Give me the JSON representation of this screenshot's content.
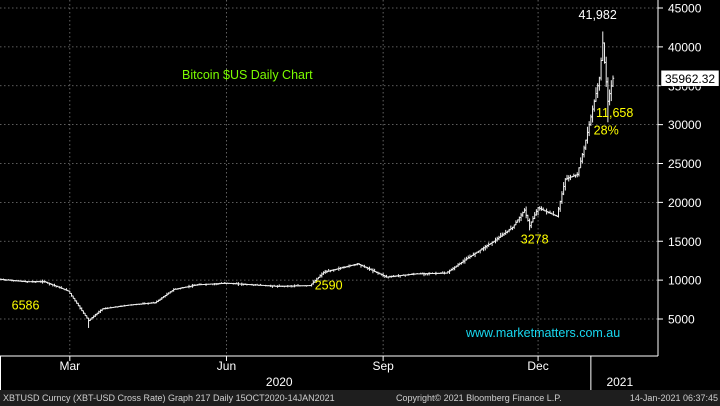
{
  "chart_data": {
    "type": "candlestick",
    "title": "Bitcoin $US Daily Chart",
    "watermark": "www.marketmatters.com.au",
    "y_axis": {
      "position": "right",
      "ylim": [
        0,
        45000
      ],
      "ticks": [
        5000,
        10000,
        15000,
        20000,
        25000,
        30000,
        35000,
        40000,
        45000
      ],
      "tick_labels": [
        "5000",
        "10000",
        "15000",
        "20000",
        "25000",
        "30000",
        "35000",
        "40000",
        "45000"
      ]
    },
    "x_axis": {
      "start": "2020-01-20",
      "end": "2021-01-14",
      "month_ticks": [
        {
          "date": "2020-03-01",
          "label": "Mar"
        },
        {
          "date": "2020-06-01",
          "label": "Jun"
        },
        {
          "date": "2020-09-01",
          "label": "Sep"
        },
        {
          "date": "2020-12-01",
          "label": "Dec"
        }
      ],
      "year_ticks": [
        {
          "date": "2020-01-01",
          "label": "2020",
          "label_date": "2020-07-02"
        },
        {
          "date": "2021-01-01",
          "label": "2021",
          "label_date": "2021-01-18"
        }
      ]
    },
    "grid": true,
    "last_price": {
      "value": 35962.32,
      "label": "35962.32"
    },
    "annotations": [
      {
        "label": "41,982",
        "date": "2021-01-05",
        "value": 43600
      },
      {
        "label": "11,658",
        "date": "2021-01-15",
        "value": 31000
      },
      {
        "label": "28%",
        "date": "2021-01-10",
        "value": 28700
      },
      {
        "label": "3278",
        "date": "2020-11-29",
        "value": 14700
      },
      {
        "label": "2590",
        "date": "2020-07-31",
        "value": 8800
      },
      {
        "label": "6586",
        "date": "2020-02-04",
        "value": 6200
      }
    ],
    "series": {
      "anchors": [
        [
          "2020-01-20",
          10100
        ],
        [
          "2020-02-04",
          9800
        ],
        [
          "2020-02-15",
          9800
        ],
        [
          "2020-02-29",
          8600
        ],
        [
          "2020-03-12",
          4800
        ],
        [
          "2020-03-20",
          6300
        ],
        [
          "2020-04-05",
          6800
        ],
        [
          "2020-04-20",
          7100
        ],
        [
          "2020-05-01",
          8800
        ],
        [
          "2020-05-15",
          9400
        ],
        [
          "2020-06-01",
          9600
        ],
        [
          "2020-07-01",
          9200
        ],
        [
          "2020-07-20",
          9300
        ],
        [
          "2020-07-28",
          11000
        ],
        [
          "2020-08-17",
          12100
        ],
        [
          "2020-09-03",
          10400
        ],
        [
          "2020-09-20",
          10800
        ],
        [
          "2020-10-08",
          10900
        ],
        [
          "2020-10-21",
          12900
        ],
        [
          "2020-11-05",
          15000
        ],
        [
          "2020-11-16",
          16800
        ],
        [
          "2020-11-23",
          19000
        ],
        [
          "2020-11-26",
          17000
        ],
        [
          "2020-12-01",
          19300
        ],
        [
          "2020-12-12",
          18200
        ],
        [
          "2020-12-17",
          23000
        ],
        [
          "2020-12-24",
          23600
        ],
        [
          "2020-12-28",
          27000
        ],
        [
          "2021-01-02",
          32000
        ],
        [
          "2021-01-06",
          36000
        ],
        [
          "2021-01-08",
          40500
        ],
        [
          "2021-01-11",
          33000
        ],
        [
          "2021-01-14",
          35962
        ]
      ],
      "extremes": [
        {
          "date": "2020-03-12",
          "low": 3850
        },
        {
          "date": "2020-11-26",
          "low": 16400
        },
        {
          "date": "2021-01-08",
          "high": 41982
        },
        {
          "date": "2021-01-11",
          "low": 30300
        }
      ]
    }
  },
  "footer": {
    "left": "XBTUSD Curncy (XBT-USD Cross Rate) Graph 217  Daily 15OCT2020-14JAN2021",
    "center": "Copyright© 2021 Bloomberg Finance L.P.",
    "right": "14-Jan-2021 06:37:45"
  }
}
